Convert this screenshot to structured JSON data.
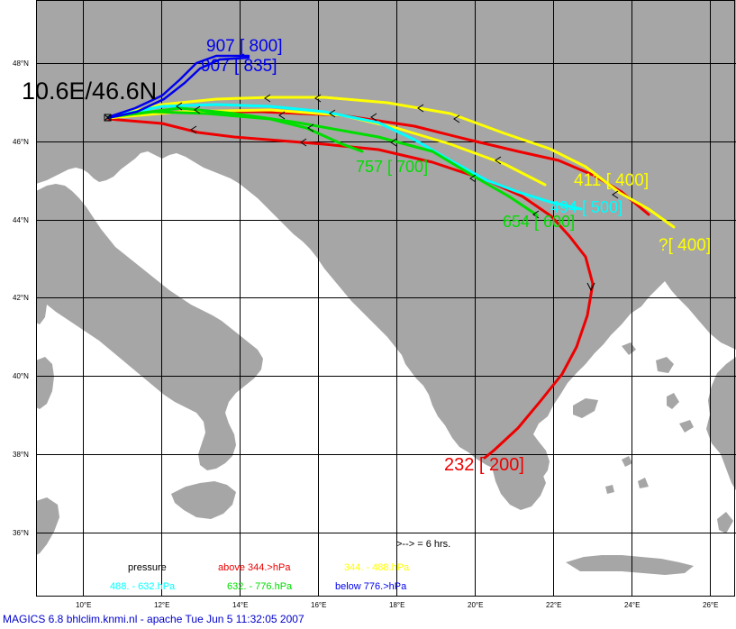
{
  "map": {
    "origin_label": "10.6E/46.6N",
    "lon_ticks": [
      "10°E",
      "12°E",
      "14°E",
      "16°E",
      "18°E",
      "20°E",
      "22°E",
      "24°E",
      "26°E"
    ],
    "lat_ticks": [
      "48°N",
      "46°N",
      "44°N",
      "42°N",
      "40°N",
      "38°N",
      "36°N"
    ],
    "colors": {
      "land": "#a6a6a6",
      "sea": "#ffffff",
      "grid": "#000000",
      "red": "#ee0000",
      "yellow": "#ffff00",
      "cyan": "#00ffff",
      "green": "#00dd00",
      "blue": "#0000ee"
    },
    "track_labels": {
      "blue_a": "907 [ 800]",
      "blue_b": "907 [ 835]",
      "green_a": "757 [ 700]",
      "green_b": "654 [ 600]",
      "cyan": "494 [ 500]",
      "yellow_a": "411 [ 400]",
      "yellow_b": "?[ 400]",
      "red": "232 [ 200]"
    }
  },
  "legend": {
    "interval_note": ">--> =  6 hrs.",
    "pressure_label": "pressure",
    "red_label": "above  344.>hPa",
    "yellow_label": "344. -   488.hPa",
    "cyan_label": "488. -   632.hPa",
    "green_label": "632. -   776.hPa",
    "blue_label": "below  776.>hPa"
  },
  "footer": "MAGICS 6.8 bhlclim.knmi.nl - apache Tue Jun  5 11:32:05 2007"
}
